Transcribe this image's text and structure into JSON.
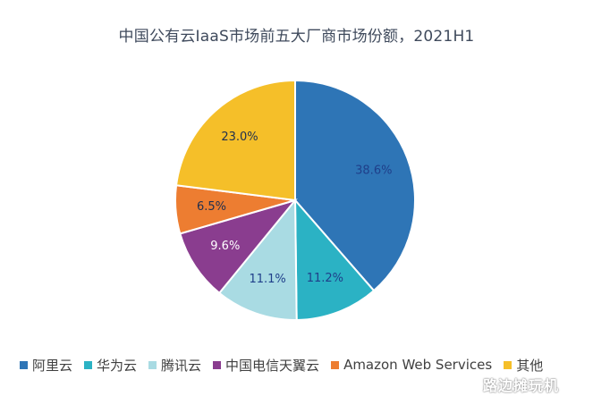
{
  "chart_data": {
    "type": "pie",
    "title": "中国公有云IaaS市场前五大厂商市场份额，2021H1",
    "labels": [
      "阿里云",
      "华为云",
      "腾讯云",
      "中国电信天翼云",
      "Amazon Web Services",
      "其他"
    ],
    "values": [
      38.6,
      11.2,
      11.1,
      9.6,
      6.5,
      23.0
    ],
    "value_labels": [
      "38.6%",
      "11.2%",
      "11.1%",
      "9.6%",
      "6.5%",
      "23.0%"
    ],
    "colors": [
      "#2e75b6",
      "#2bb2c4",
      "#a9dbe3",
      "#8a3d8f",
      "#ed7d31",
      "#f5bf29"
    ],
    "label_colors": [
      "#1f3f8a",
      "#1f3f8a",
      "#1f3f8a",
      "#ffffff",
      "#1f2f4f",
      "#1f2f4f"
    ],
    "start": "top, clockwise",
    "legend_position": "bottom"
  },
  "watermark": "路边摊玩机"
}
